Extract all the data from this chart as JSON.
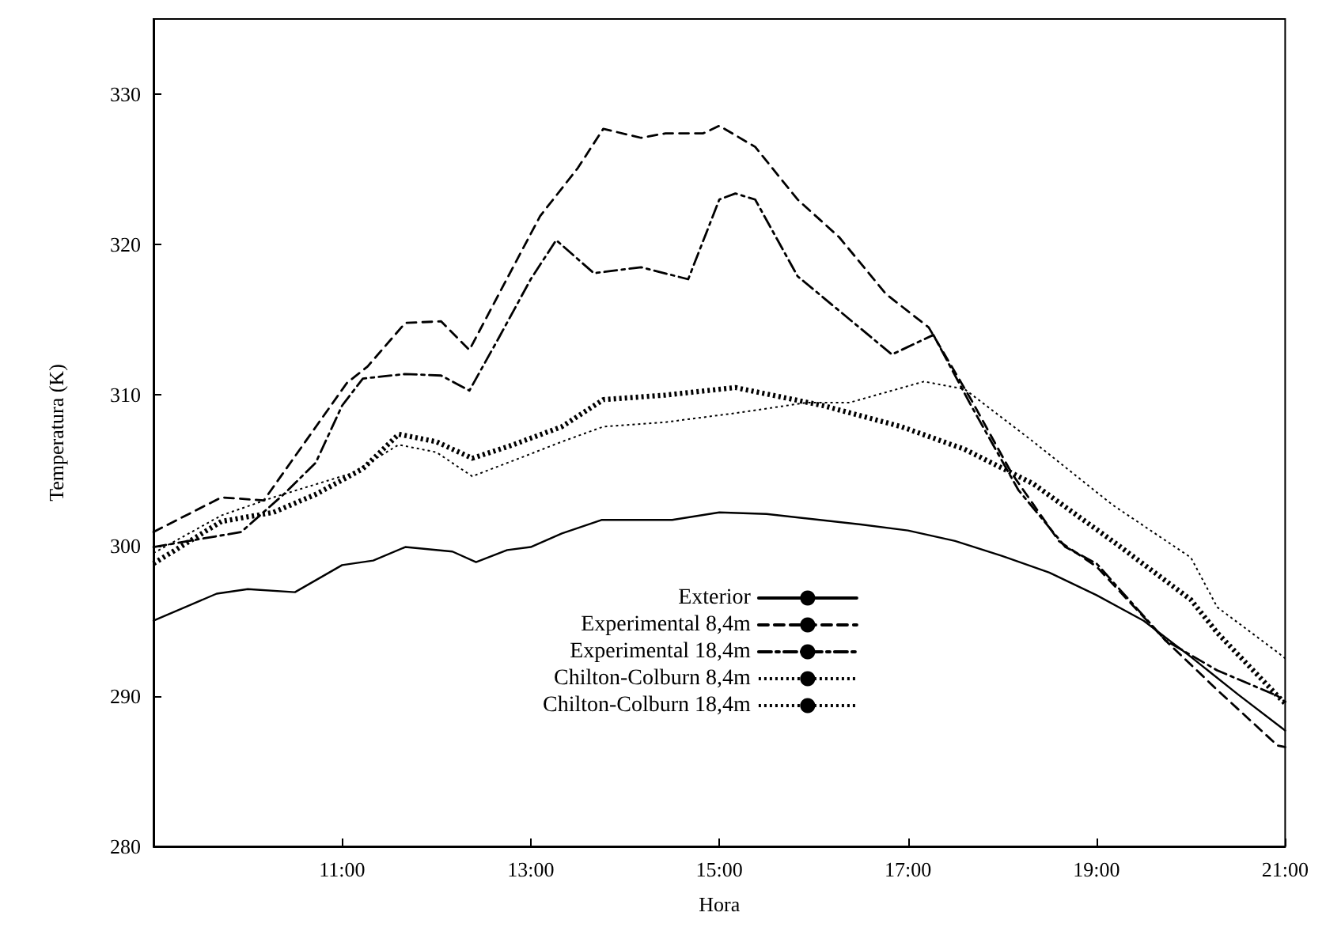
{
  "chart_data": {
    "type": "line",
    "xlabel": "Hora",
    "ylabel": "Temperatura (K)",
    "xlim": [
      9,
      21
    ],
    "ylim": [
      280,
      335
    ],
    "xticks": [
      {
        "value": 11,
        "label": "11:00"
      },
      {
        "value": 13,
        "label": "13:00"
      },
      {
        "value": 15,
        "label": "15:00"
      },
      {
        "value": 17,
        "label": "17:00"
      },
      {
        "value": 19,
        "label": "19:00"
      },
      {
        "value": 21,
        "label": "21:00"
      }
    ],
    "yticks": [
      280,
      290,
      300,
      310,
      320,
      330
    ],
    "grid": false,
    "legend": "bottom",
    "marker": "none",
    "series": [
      {
        "name": "Exterior",
        "color": "#000000",
        "line_style": "solid",
        "x": [
          9,
          9.67,
          10,
          10.5,
          11,
          11.33,
          11.67,
          12.17,
          12.42,
          12.75,
          13,
          13.33,
          13.75,
          14.5,
          15,
          15.5,
          16.5,
          17,
          17.5,
          18,
          18.5,
          19,
          19.5,
          20,
          20.5,
          21
        ],
        "values": [
          295.0,
          296.8,
          297.1,
          296.9,
          298.7,
          299.0,
          299.9,
          299.6,
          298.9,
          299.7,
          299.9,
          300.8,
          301.7,
          301.7,
          302.2,
          302.1,
          301.4,
          301.0,
          300.3,
          299.3,
          298.2,
          296.7,
          295.0,
          292.6,
          290.1,
          287.7
        ]
      },
      {
        "name": "Experimental 8,4m",
        "color": "#000000",
        "line_style": "dashed",
        "x": [
          9,
          9.72,
          10.17,
          11.05,
          11.27,
          11.67,
          12.05,
          12.35,
          12.72,
          13.1,
          13.5,
          13.77,
          14.17,
          14.43,
          14.83,
          15,
          15.38,
          15.83,
          16.27,
          16.77,
          17.22,
          17.67,
          18.1,
          18.6,
          19,
          19.73,
          20.28,
          20.92,
          21
        ],
        "values": [
          300.9,
          303.2,
          303.0,
          310.8,
          311.9,
          314.8,
          314.9,
          313.0,
          317.4,
          321.9,
          325.1,
          327.7,
          327.1,
          327.4,
          327.4,
          327.9,
          326.5,
          323.0,
          320.5,
          316.7,
          314.5,
          309.7,
          304.8,
          300.3,
          298.6,
          293.7,
          290.4,
          286.7,
          286.6
        ]
      },
      {
        "name": "Experimental 18,4m",
        "color": "#000000",
        "line_style": "dashdot",
        "x": [
          9,
          9.93,
          10.38,
          10.72,
          11,
          11.22,
          11.67,
          12.05,
          12.35,
          12.67,
          13,
          13.27,
          13.67,
          14.17,
          14.67,
          15,
          15.17,
          15.38,
          15.83,
          16.83,
          17.27,
          17.67,
          18.17,
          18.67,
          19,
          19.73,
          20.28,
          20.92,
          21
        ],
        "values": [
          299.9,
          300.9,
          303.4,
          305.5,
          309.3,
          311.1,
          311.4,
          311.3,
          310.3,
          313.9,
          317.7,
          320.3,
          318.1,
          318.5,
          317.7,
          323.0,
          323.4,
          323.0,
          317.9,
          312.7,
          314.0,
          309.3,
          303.7,
          299.9,
          298.8,
          293.7,
          291.7,
          290.0,
          289.6
        ]
      },
      {
        "name": "Chilton-Colburn 8,4m",
        "color": "#000000",
        "line_style": "dotted",
        "x": [
          9,
          9.72,
          10.27,
          10.72,
          11.22,
          11.6,
          12,
          12.38,
          12.77,
          13.33,
          13.77,
          14.43,
          15.17,
          16.1,
          16.93,
          17.6,
          18.33,
          19.17,
          20,
          20.28,
          20.92,
          21
        ],
        "values": [
          298.8,
          301.6,
          302.2,
          303.4,
          305.1,
          307.4,
          306.9,
          305.8,
          306.6,
          307.9,
          309.7,
          310.0,
          310.5,
          309.3,
          307.9,
          306.4,
          304.1,
          300.3,
          296.4,
          294.2,
          290.0,
          289.5
        ]
      },
      {
        "name": "Chilton-Colburn 18,4m",
        "color": "#000000",
        "line_style": "dotted",
        "x": [
          9,
          9.72,
          10.27,
          11.1,
          11.6,
          12,
          12.38,
          12.88,
          13.33,
          13.77,
          14.43,
          15.17,
          15.93,
          16.38,
          17.17,
          17.6,
          18.33,
          19.17,
          20,
          20.28,
          20.92,
          21
        ],
        "values": [
          299.5,
          302.0,
          303.2,
          304.8,
          306.7,
          306.2,
          304.6,
          305.8,
          306.9,
          307.9,
          308.2,
          308.8,
          309.5,
          309.5,
          310.9,
          310.4,
          306.9,
          302.7,
          299.2,
          295.9,
          292.9,
          292.5
        ]
      }
    ]
  }
}
